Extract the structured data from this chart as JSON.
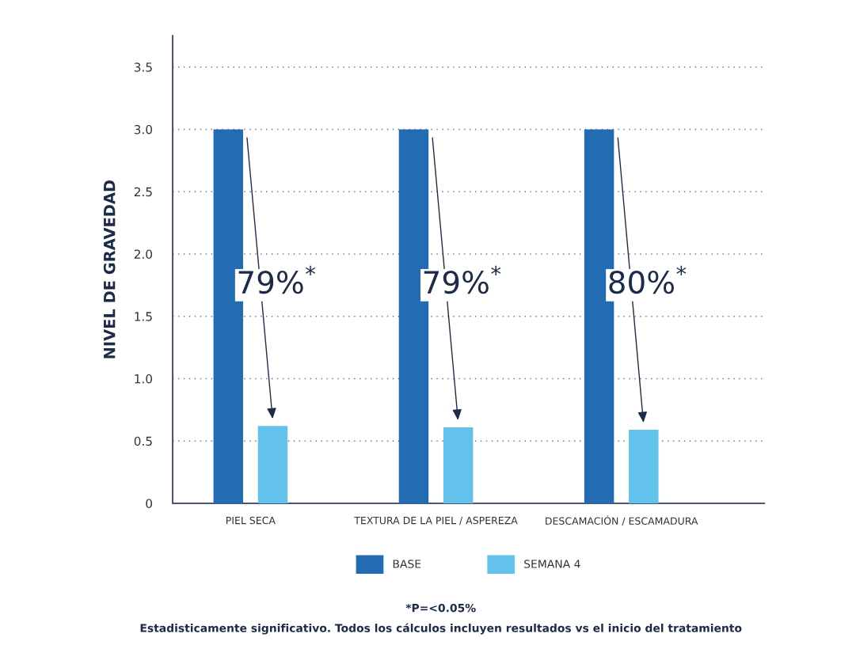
{
  "chart_data": {
    "type": "bar",
    "ylabel": "NIVEL DE GRAVEDAD",
    "categories": [
      "PIEL SECA",
      "TEXTURA DE LA PIEL / ASPEREZA",
      "DESCAMACIÓN / ESCAMADURA"
    ],
    "series": [
      {
        "name": "BASE",
        "color": "#236bb3",
        "values": [
          3.0,
          3.0,
          3.0
        ]
      },
      {
        "name": "SEMANA 4",
        "color": "#62c2ec",
        "values": [
          0.62,
          0.61,
          0.59
        ]
      }
    ],
    "ylim": [
      0,
      3.75
    ],
    "yticks": [
      0,
      0.5,
      {
        "value": 1,
        "label": "1.0"
      },
      1.5,
      {
        "value": 2,
        "label": "2.0"
      },
      2.5,
      {
        "value": 3,
        "label": "3.0"
      },
      3.5
    ],
    "grid": "y",
    "legend": "bottom",
    "annotations": [
      "79%$^{*}$",
      "79%$^{*}$",
      "80%$^{*}$",
      "*P=<0.05%",
      "Estadisticamente significativo. Todos los cálculos incluyen resultados vs el inicio del tratamiento"
    ]
  }
}
